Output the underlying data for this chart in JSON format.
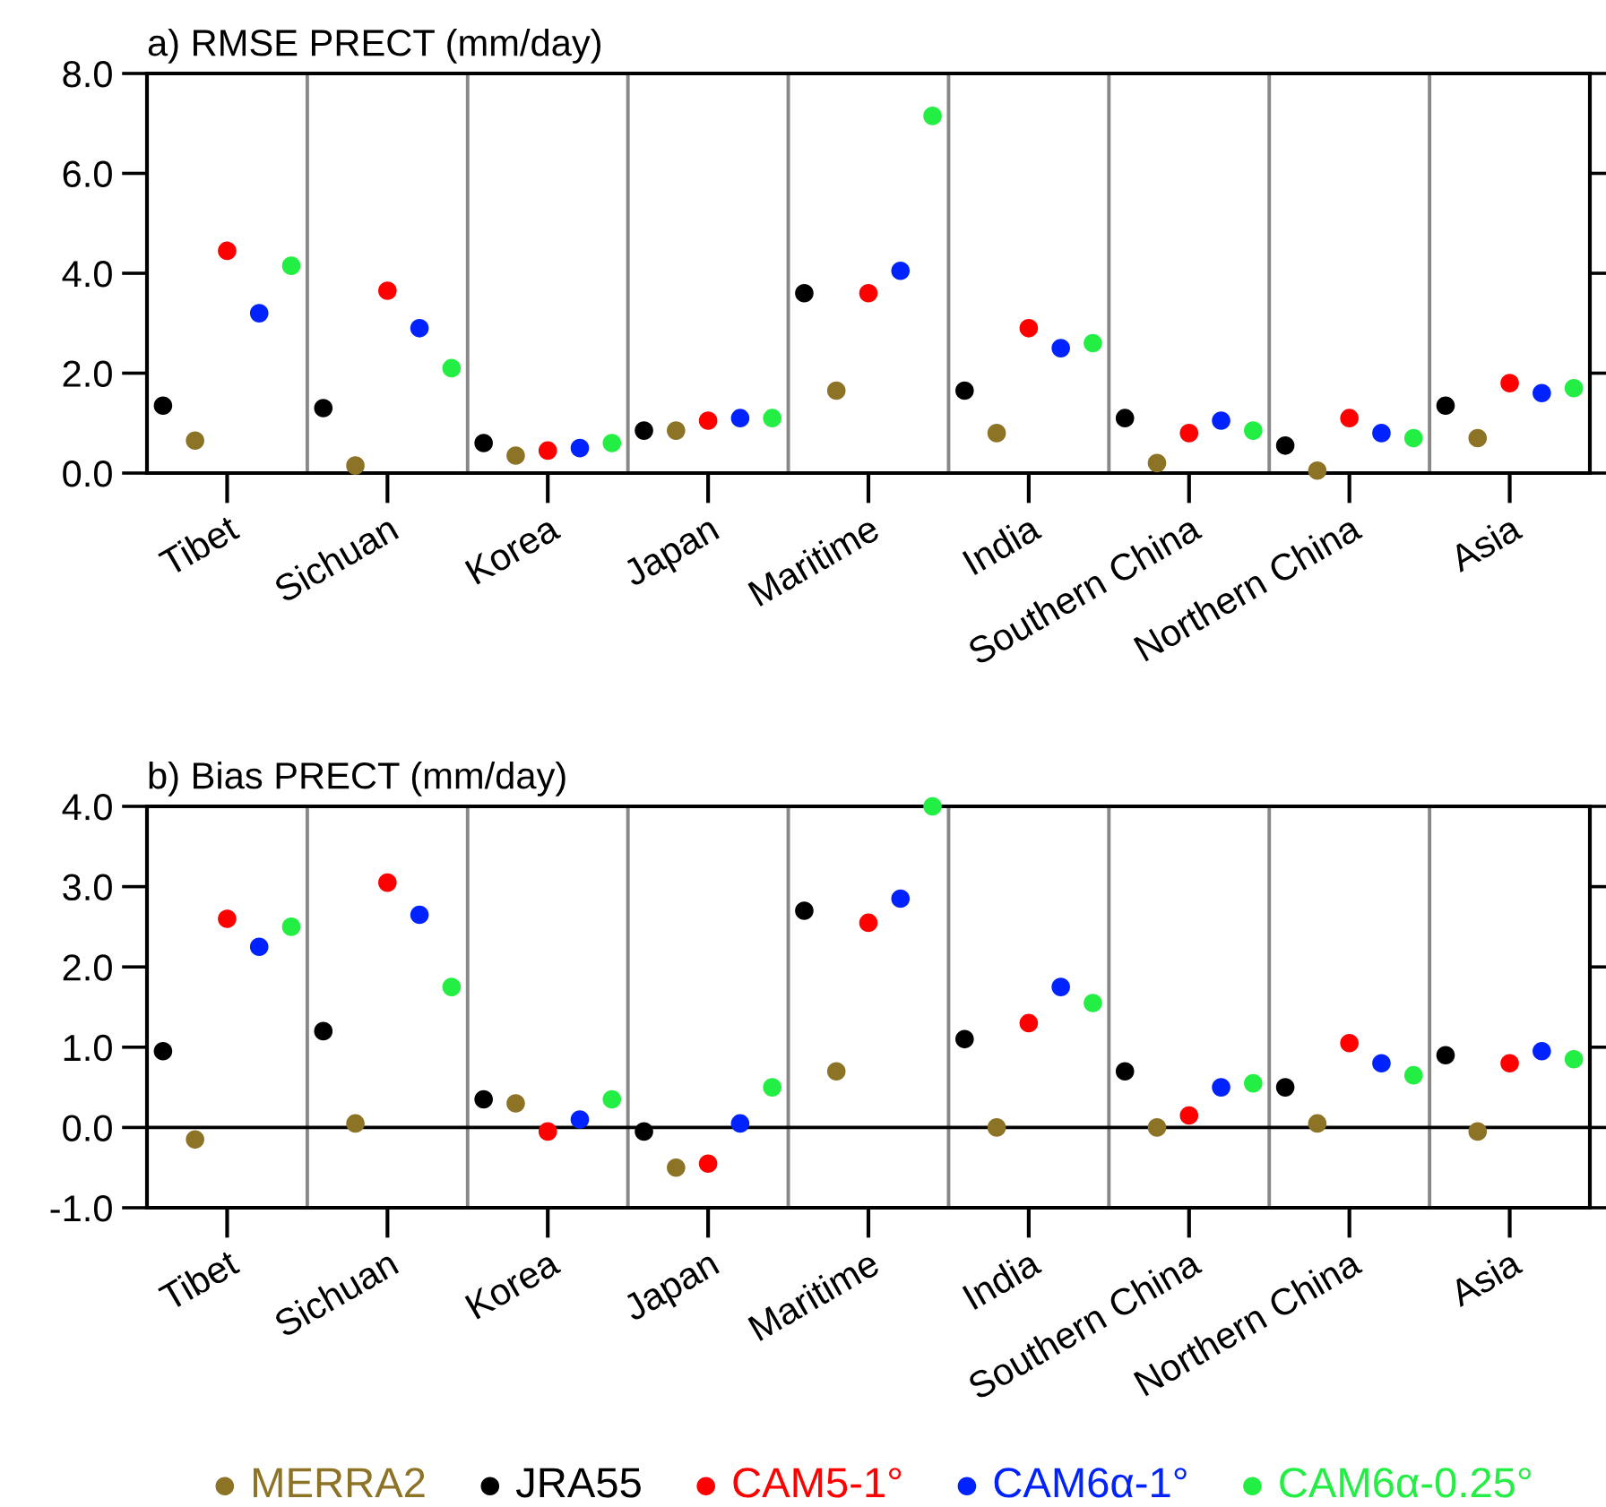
{
  "chart_data": [
    {
      "type": "scatter",
      "title": "a) RMSE PRECT (mm/day)",
      "categories": [
        null,
        null,
        "Tibet",
        null,
        null,
        null,
        null,
        "Sichuan",
        null,
        null,
        null,
        null,
        "Korea",
        null,
        null,
        null,
        null,
        "Japan",
        null,
        null,
        null,
        null,
        "Maritime",
        null,
        null,
        null,
        null,
        "India",
        null,
        null,
        null,
        null,
        "Southern China",
        null,
        null,
        null,
        null,
        "Northern China",
        null,
        null,
        null,
        null,
        "Asia",
        null,
        null
      ],
      "series": [
        {
          "color": "#8c7326",
          "values": [
            null,
            0.65,
            null,
            null,
            null,
            null,
            0.15,
            null,
            null,
            null,
            null,
            0.35,
            null,
            null,
            null,
            null,
            0.85,
            null,
            null,
            null,
            null,
            1.65,
            null,
            null,
            null,
            null,
            0.8,
            null,
            null,
            null,
            null,
            0.2,
            null,
            null,
            null,
            null,
            0.05,
            null,
            null,
            null,
            null,
            0.7,
            null,
            null,
            null
          ]
        },
        {
          "color": "#000000",
          "values": [
            1.35,
            null,
            null,
            null,
            null,
            1.3,
            null,
            null,
            null,
            null,
            0.6,
            null,
            null,
            null,
            null,
            0.85,
            null,
            null,
            null,
            null,
            3.6,
            null,
            null,
            null,
            null,
            1.65,
            null,
            null,
            null,
            null,
            1.1,
            null,
            null,
            null,
            null,
            0.55,
            null,
            null,
            null,
            null,
            1.35,
            null,
            null,
            null,
            null
          ]
        },
        {
          "color": "#ff0000",
          "values": [
            null,
            null,
            4.45,
            null,
            null,
            null,
            null,
            3.65,
            null,
            null,
            null,
            null,
            0.45,
            null,
            null,
            null,
            null,
            1.05,
            null,
            null,
            null,
            null,
            3.6,
            null,
            null,
            null,
            null,
            2.9,
            null,
            null,
            null,
            null,
            0.8,
            null,
            null,
            null,
            null,
            1.1,
            null,
            null,
            null,
            null,
            1.8,
            null,
            null
          ]
        },
        {
          "color": "#0022ff",
          "values": [
            null,
            null,
            null,
            3.2,
            null,
            null,
            null,
            null,
            2.9,
            null,
            null,
            null,
            null,
            0.5,
            null,
            null,
            null,
            null,
            1.1,
            null,
            null,
            null,
            null,
            4.05,
            null,
            null,
            null,
            null,
            2.5,
            null,
            null,
            null,
            null,
            1.05,
            null,
            null,
            null,
            null,
            0.8,
            null,
            null,
            null,
            null,
            1.6,
            null
          ]
        },
        {
          "color": "#22ee44",
          "values": [
            null,
            null,
            null,
            null,
            4.15,
            null,
            null,
            null,
            null,
            2.1,
            null,
            null,
            null,
            null,
            0.6,
            null,
            null,
            null,
            null,
            1.1,
            null,
            null,
            null,
            null,
            7.15,
            null,
            null,
            null,
            null,
            2.6,
            null,
            null,
            null,
            null,
            0.85,
            null,
            null,
            null,
            null,
            0.7,
            null,
            null,
            null,
            null,
            1.7
          ]
        }
      ],
      "ylim": [
        0,
        8
      ],
      "yticks": [
        {
          "value": 0,
          "label": "0.0"
        },
        {
          "value": 2,
          "label": "2.0"
        },
        {
          "value": 4,
          "label": "4.0"
        },
        {
          "value": 6,
          "label": "6.0"
        },
        {
          "value": 8,
          "label": "8.0"
        }
      ],
      "marker": "circle"
    },
    {
      "type": "scatter",
      "title": "b) Bias PRECT (mm/day)",
      "categories": [
        null,
        null,
        "Tibet",
        null,
        null,
        null,
        null,
        "Sichuan",
        null,
        null,
        null,
        null,
        "Korea",
        null,
        null,
        null,
        null,
        "Japan",
        null,
        null,
        null,
        null,
        "Maritime",
        null,
        null,
        null,
        null,
        "India",
        null,
        null,
        null,
        null,
        "Southern China",
        null,
        null,
        null,
        null,
        "Northern China",
        null,
        null,
        null,
        null,
        "Asia",
        null,
        null
      ],
      "series": [
        {
          "name": "MERRA2",
          "color": "#8c7326",
          "values": [
            null,
            -0.15,
            null,
            null,
            null,
            null,
            0.05,
            null,
            null,
            null,
            null,
            0.3,
            null,
            null,
            null,
            null,
            -0.5,
            null,
            null,
            null,
            null,
            0.7,
            null,
            null,
            null,
            null,
            0.0,
            null,
            null,
            null,
            null,
            0.0,
            null,
            null,
            null,
            null,
            0.05,
            null,
            null,
            null,
            null,
            -0.05,
            null,
            null,
            null
          ]
        },
        {
          "name": "JRA55",
          "color": "#000000",
          "values": [
            0.95,
            null,
            null,
            null,
            null,
            1.2,
            null,
            null,
            null,
            null,
            0.35,
            null,
            null,
            null,
            null,
            -0.05,
            null,
            null,
            null,
            null,
            2.7,
            null,
            null,
            null,
            null,
            1.1,
            null,
            null,
            null,
            null,
            0.7,
            null,
            null,
            null,
            null,
            0.5,
            null,
            null,
            null,
            null,
            0.9,
            null,
            null,
            null,
            null
          ]
        },
        {
          "name": "CAM5-1°",
          "color": "#ff0000",
          "values": [
            null,
            null,
            2.6,
            null,
            null,
            null,
            null,
            3.05,
            null,
            null,
            null,
            null,
            -0.05,
            null,
            null,
            null,
            null,
            -0.45,
            null,
            null,
            null,
            null,
            2.55,
            null,
            null,
            null,
            null,
            1.3,
            null,
            null,
            null,
            null,
            0.15,
            null,
            null,
            null,
            null,
            1.05,
            null,
            null,
            null,
            null,
            0.8,
            null,
            null
          ]
        },
        {
          "name": "CAM6α-1°",
          "color": "#0022ff",
          "values": [
            null,
            null,
            null,
            2.25,
            null,
            null,
            null,
            null,
            2.65,
            null,
            null,
            null,
            null,
            0.1,
            null,
            null,
            null,
            null,
            0.05,
            null,
            null,
            null,
            null,
            2.85,
            null,
            null,
            null,
            null,
            1.75,
            null,
            null,
            null,
            null,
            0.5,
            null,
            null,
            null,
            null,
            0.8,
            null,
            null,
            null,
            null,
            0.95,
            null
          ]
        },
        {
          "name": "CAM6α-0.25°",
          "color": "#22ee44",
          "values": [
            null,
            null,
            null,
            null,
            2.5,
            null,
            null,
            null,
            null,
            1.75,
            null,
            null,
            null,
            null,
            0.35,
            null,
            null,
            null,
            null,
            0.5,
            null,
            null,
            null,
            null,
            4.0,
            null,
            null,
            null,
            null,
            1.55,
            null,
            null,
            null,
            null,
            0.55,
            null,
            null,
            null,
            null,
            0.65,
            null,
            null,
            null,
            null,
            0.85
          ]
        }
      ],
      "ylim": [
        -1,
        4
      ],
      "yticks": [
        {
          "value": -1,
          "label": "-1.0"
        },
        {
          "value": 0,
          "label": "0.0"
        },
        {
          "value": 1,
          "label": "1.0"
        },
        {
          "value": 2,
          "label": "2.0"
        },
        {
          "value": 3,
          "label": "3.0"
        },
        {
          "value": 4,
          "label": "4.0"
        }
      ],
      "ref_lines": [
        {
          "axis": "y",
          "value": 0,
          "color": "#000000"
        }
      ],
      "marker": "circle",
      "legend": "bottom"
    }
  ]
}
